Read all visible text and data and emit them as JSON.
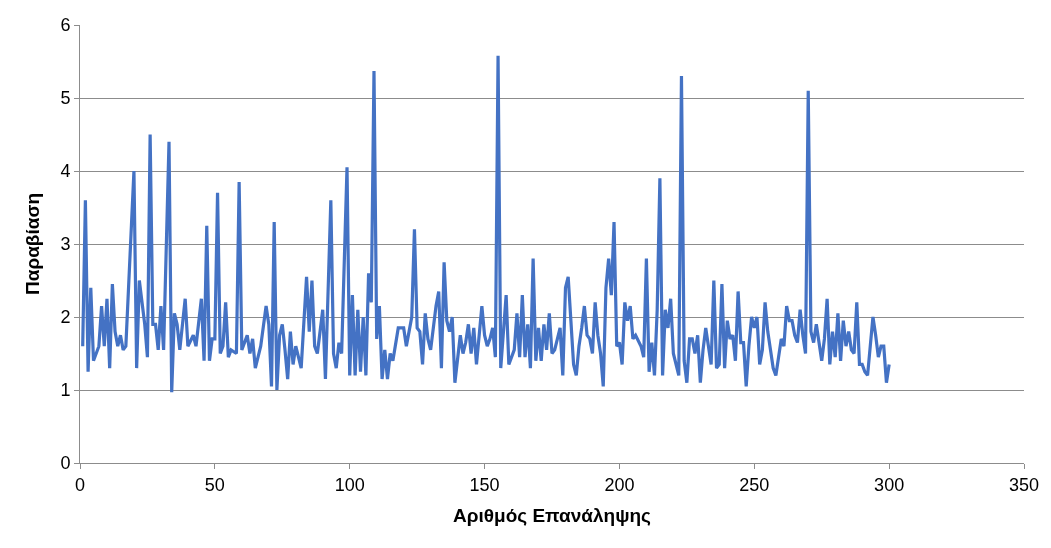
{
  "chart_data": {
    "type": "line",
    "xlabel": "Αριθμός Επανάληψης",
    "ylabel": "Παραβίαση",
    "x": [
      1,
      2,
      3,
      4,
      5,
      7,
      8,
      9,
      10,
      11,
      12,
      13,
      14,
      15,
      16,
      17,
      20,
      21,
      22,
      24,
      25,
      26,
      27,
      28,
      29,
      30,
      31,
      33,
      34,
      35,
      36,
      37,
      39,
      40,
      42,
      43,
      45,
      46,
      47,
      48,
      49,
      50,
      51,
      52,
      53,
      54,
      55,
      56,
      58,
      59,
      60,
      62,
      63,
      64,
      65,
      67,
      69,
      70,
      71,
      72,
      73,
      74,
      75,
      76,
      77,
      78,
      79,
      80,
      81,
      82,
      84,
      85,
      86,
      87,
      88,
      90,
      91,
      93,
      94,
      95,
      96,
      97,
      99,
      100,
      101,
      102,
      103,
      104,
      105,
      106,
      107,
      108,
      109,
      110,
      111,
      112,
      113,
      114,
      115,
      116,
      118,
      120,
      121,
      122,
      123,
      124,
      125,
      126,
      127,
      128,
      129,
      130,
      132,
      133,
      134,
      135,
      136,
      137,
      138,
      139,
      141,
      142,
      143,
      144,
      145,
      146,
      147,
      149,
      150,
      151,
      152,
      153,
      154,
      155,
      156,
      158,
      159,
      161,
      162,
      163,
      164,
      165,
      166,
      167,
      168,
      169,
      170,
      171,
      172,
      173,
      174,
      175,
      176,
      178,
      179,
      180,
      181,
      182,
      183,
      184,
      185,
      186,
      187,
      188,
      189,
      190,
      191,
      192,
      193,
      194,
      195,
      196,
      197,
      198,
      199,
      200,
      201,
      202,
      203,
      204,
      205,
      206,
      208,
      209,
      210,
      211,
      212,
      213,
      214,
      215,
      216,
      217,
      218,
      219,
      220,
      222,
      223,
      224,
      225,
      226,
      227,
      228,
      229,
      230,
      231,
      232,
      233,
      234,
      235,
      236,
      237,
      238,
      239,
      240,
      241,
      242,
      243,
      244,
      245,
      246,
      247,
      248,
      249,
      250,
      251,
      252,
      253,
      254,
      255,
      256,
      257,
      258,
      260,
      261,
      262,
      263,
      264,
      265,
      266,
      267,
      268,
      269,
      270,
      271,
      272,
      273,
      274,
      275,
      276,
      277,
      278,
      279,
      280,
      281,
      282,
      283,
      284,
      285,
      286,
      287,
      288,
      289,
      290,
      291,
      292,
      293,
      294,
      295,
      296,
      297,
      298,
      299,
      300
    ],
    "series": [
      {
        "color": "#4472c4",
        "values": [
          1.6,
          3.6,
          1.25,
          2.4,
          1.4,
          1.6,
          2.15,
          1.6,
          2.25,
          1.3,
          2.45,
          1.8,
          1.6,
          1.75,
          1.55,
          1.6,
          4.0,
          1.3,
          2.5,
          1.9,
          1.45,
          4.5,
          1.9,
          1.9,
          1.55,
          2.15,
          1.55,
          4.4,
          0.97,
          2.05,
          1.9,
          1.55,
          2.25,
          1.6,
          1.75,
          1.6,
          2.25,
          1.4,
          3.25,
          1.4,
          1.7,
          1.7,
          3.7,
          1.5,
          1.6,
          2.2,
          1.45,
          1.55,
          1.5,
          3.85,
          1.55,
          1.75,
          1.5,
          1.7,
          1.3,
          1.6,
          2.15,
          1.9,
          1.05,
          3.3,
          1.0,
          1.75,
          1.9,
          1.55,
          1.15,
          1.8,
          1.35,
          1.6,
          1.45,
          1.3,
          2.55,
          1.8,
          2.5,
          1.6,
          1.5,
          2.1,
          1.15,
          3.6,
          1.5,
          1.3,
          1.65,
          1.5,
          4.05,
          1.2,
          2.3,
          1.2,
          2.1,
          1.25,
          2.0,
          1.2,
          2.6,
          2.2,
          5.37,
          1.7,
          2.15,
          1.15,
          1.55,
          1.15,
          1.5,
          1.4,
          1.85,
          1.85,
          1.6,
          1.8,
          2.0,
          3.2,
          1.85,
          1.8,
          1.35,
          2.05,
          1.7,
          1.55,
          2.15,
          2.35,
          1.3,
          2.75,
          1.95,
          1.8,
          2.0,
          1.1,
          1.75,
          1.5,
          1.65,
          1.9,
          1.5,
          1.85,
          1.35,
          2.15,
          1.75,
          1.6,
          1.7,
          1.85,
          1.45,
          5.58,
          1.3,
          2.3,
          1.35,
          1.55,
          2.05,
          1.45,
          2.3,
          1.45,
          1.9,
          1.3,
          2.8,
          1.4,
          1.85,
          1.4,
          1.9,
          1.55,
          2.05,
          1.5,
          1.55,
          1.85,
          1.2,
          2.4,
          2.55,
          1.95,
          1.35,
          1.2,
          1.6,
          1.85,
          2.15,
          1.75,
          1.7,
          1.5,
          2.2,
          1.75,
          1.5,
          1.05,
          2.4,
          2.8,
          2.3,
          3.3,
          1.6,
          1.65,
          1.35,
          2.2,
          1.95,
          2.15,
          1.7,
          1.75,
          1.6,
          1.45,
          2.8,
          1.25,
          1.65,
          1.2,
          2.1,
          3.9,
          1.2,
          2.1,
          1.85,
          2.25,
          1.5,
          1.2,
          5.3,
          1.4,
          1.1,
          1.7,
          1.7,
          1.5,
          1.75,
          1.1,
          1.55,
          1.85,
          1.6,
          1.35,
          2.5,
          1.3,
          1.35,
          2.45,
          1.3,
          1.95,
          1.7,
          1.75,
          1.4,
          2.35,
          1.65,
          1.65,
          1.05,
          1.6,
          2.0,
          1.85,
          2.0,
          1.35,
          1.55,
          2.2,
          1.8,
          1.55,
          1.3,
          1.2,
          1.7,
          1.6,
          2.15,
          1.95,
          1.95,
          1.75,
          1.65,
          2.1,
          1.75,
          1.5,
          5.1,
          1.8,
          1.65,
          1.9,
          1.65,
          1.4,
          1.7,
          2.25,
          1.35,
          1.8,
          1.45,
          2.05,
          1.4,
          1.95,
          1.6,
          1.8,
          1.55,
          1.5,
          2.2,
          1.35,
          1.35,
          1.25,
          1.2,
          1.6,
          2.0,
          1.75,
          1.45,
          1.6,
          1.6,
          1.1,
          1.35
        ]
      }
    ],
    "xlim": [
      0,
      350
    ],
    "xticks": [
      0,
      50,
      100,
      150,
      200,
      250,
      300,
      350
    ],
    "ylim": [
      0,
      6
    ],
    "yticks": [
      0,
      1,
      2,
      3,
      4,
      5,
      6
    ],
    "grid": "y",
    "marker": "none",
    "line_style": "solid"
  }
}
